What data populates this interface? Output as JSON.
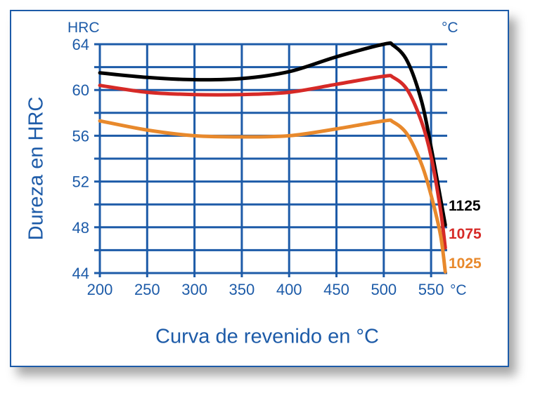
{
  "chart_data": {
    "type": "line",
    "title": "",
    "xlabel": "Curva de revenido en °C",
    "ylabel": "Dureza en HRC",
    "y_unit": "HRC",
    "x_unit_top": "°C",
    "x_unit_axis": "°C",
    "xlim": [
      200,
      565
    ],
    "ylim": [
      44,
      64
    ],
    "xticks": [
      "200",
      "250",
      "300",
      "350",
      "400",
      "450",
      "500",
      "550"
    ],
    "yticks": [
      "64",
      "60",
      "56",
      "52",
      "48",
      "44"
    ],
    "grid": true,
    "series": [
      {
        "name": "1125",
        "color": "#000000",
        "x": [
          200,
          250,
          300,
          350,
          400,
          450,
          500,
          510,
          525,
          540,
          550,
          560,
          565
        ],
        "y": [
          61.5,
          61.1,
          60.9,
          61.0,
          61.6,
          62.9,
          64.0,
          63.9,
          62.5,
          59,
          55,
          50.5,
          48.2
        ]
      },
      {
        "name": "1075",
        "color": "#d62a27",
        "x": [
          200,
          250,
          300,
          350,
          400,
          450,
          500,
          510,
          525,
          540,
          550,
          560,
          565
        ],
        "y": [
          60.4,
          59.8,
          59.6,
          59.6,
          59.8,
          60.5,
          61.2,
          61.1,
          60,
          57.2,
          54.2,
          49.5,
          46.2
        ]
      },
      {
        "name": "1025",
        "color": "#e8892c",
        "x": [
          200,
          250,
          300,
          350,
          400,
          450,
          500,
          510,
          525,
          540,
          550,
          560,
          565
        ],
        "y": [
          57.3,
          56.5,
          56.0,
          55.9,
          56.0,
          56.6,
          57.3,
          57.2,
          56.1,
          53.5,
          50.8,
          47.3,
          44.1
        ]
      }
    ],
    "legend": "right-end labels"
  }
}
